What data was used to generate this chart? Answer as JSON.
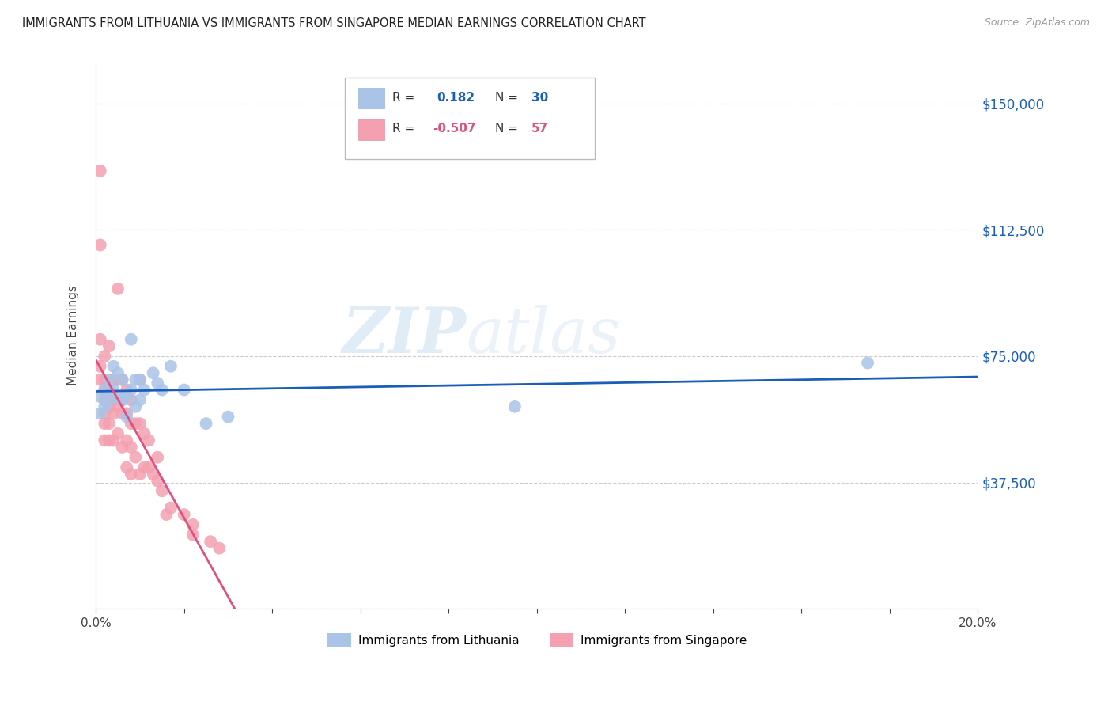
{
  "title": "IMMIGRANTS FROM LITHUANIA VS IMMIGRANTS FROM SINGAPORE MEDIAN EARNINGS CORRELATION CHART",
  "source": "Source: ZipAtlas.com",
  "ylabel": "Median Earnings",
  "xlim": [
    0.0,
    0.2
  ],
  "ylim": [
    0,
    162500
  ],
  "yticks": [
    0,
    37500,
    75000,
    112500,
    150000
  ],
  "ytick_labels": [
    "",
    "$37,500",
    "$75,000",
    "$112,500",
    "$150,000"
  ],
  "xtick_positions": [
    0.0,
    0.02,
    0.04,
    0.06,
    0.08,
    0.1,
    0.12,
    0.14,
    0.16,
    0.18,
    0.2
  ],
  "xtick_labels": [
    "0.0%",
    "",
    "",
    "",
    "",
    "",
    "",
    "",
    "",
    "",
    "20.0%"
  ],
  "background_color": "#ffffff",
  "grid_color": "#cccccc",
  "lithuania_color": "#aac4e8",
  "singapore_color": "#f4a0b0",
  "line_lithuania_color": "#1a5eb8",
  "line_singapore_color": "#e05080",
  "R_lithuania": 0.182,
  "N_lithuania": 30,
  "R_singapore": -0.507,
  "N_singapore": 57,
  "watermark_zip": "ZIP",
  "watermark_atlas": "atlas",
  "lithuania_x": [
    0.001,
    0.001,
    0.002,
    0.002,
    0.003,
    0.003,
    0.004,
    0.004,
    0.005,
    0.005,
    0.006,
    0.006,
    0.007,
    0.007,
    0.008,
    0.008,
    0.009,
    0.009,
    0.01,
    0.01,
    0.011,
    0.013,
    0.014,
    0.015,
    0.017,
    0.02,
    0.025,
    0.03,
    0.095,
    0.175
  ],
  "lithuania_y": [
    63000,
    58000,
    65000,
    60000,
    68000,
    62000,
    72000,
    65000,
    70000,
    63000,
    68000,
    62000,
    63000,
    57000,
    80000,
    65000,
    68000,
    60000,
    68000,
    62000,
    65000,
    70000,
    67000,
    65000,
    72000,
    65000,
    55000,
    57000,
    60000,
    73000
  ],
  "singapore_x": [
    0.001,
    0.001,
    0.001,
    0.001,
    0.001,
    0.002,
    0.002,
    0.002,
    0.002,
    0.002,
    0.002,
    0.002,
    0.003,
    0.003,
    0.003,
    0.003,
    0.003,
    0.004,
    0.004,
    0.004,
    0.004,
    0.005,
    0.005,
    0.005,
    0.005,
    0.006,
    0.006,
    0.006,
    0.006,
    0.007,
    0.007,
    0.007,
    0.007,
    0.008,
    0.008,
    0.008,
    0.008,
    0.009,
    0.009,
    0.01,
    0.01,
    0.01,
    0.011,
    0.011,
    0.012,
    0.012,
    0.013,
    0.014,
    0.014,
    0.015,
    0.016,
    0.017,
    0.02,
    0.022,
    0.022,
    0.026,
    0.028
  ],
  "singapore_y": [
    130000,
    108000,
    80000,
    72000,
    68000,
    75000,
    68000,
    65000,
    62000,
    58000,
    55000,
    50000,
    78000,
    65000,
    60000,
    55000,
    50000,
    68000,
    62000,
    58000,
    50000,
    95000,
    68000,
    60000,
    52000,
    68000,
    62000,
    58000,
    48000,
    65000,
    58000,
    50000,
    42000,
    62000,
    55000,
    48000,
    40000,
    55000,
    45000,
    68000,
    55000,
    40000,
    52000,
    42000,
    50000,
    42000,
    40000,
    45000,
    38000,
    35000,
    28000,
    30000,
    28000,
    22000,
    25000,
    20000,
    18000
  ]
}
